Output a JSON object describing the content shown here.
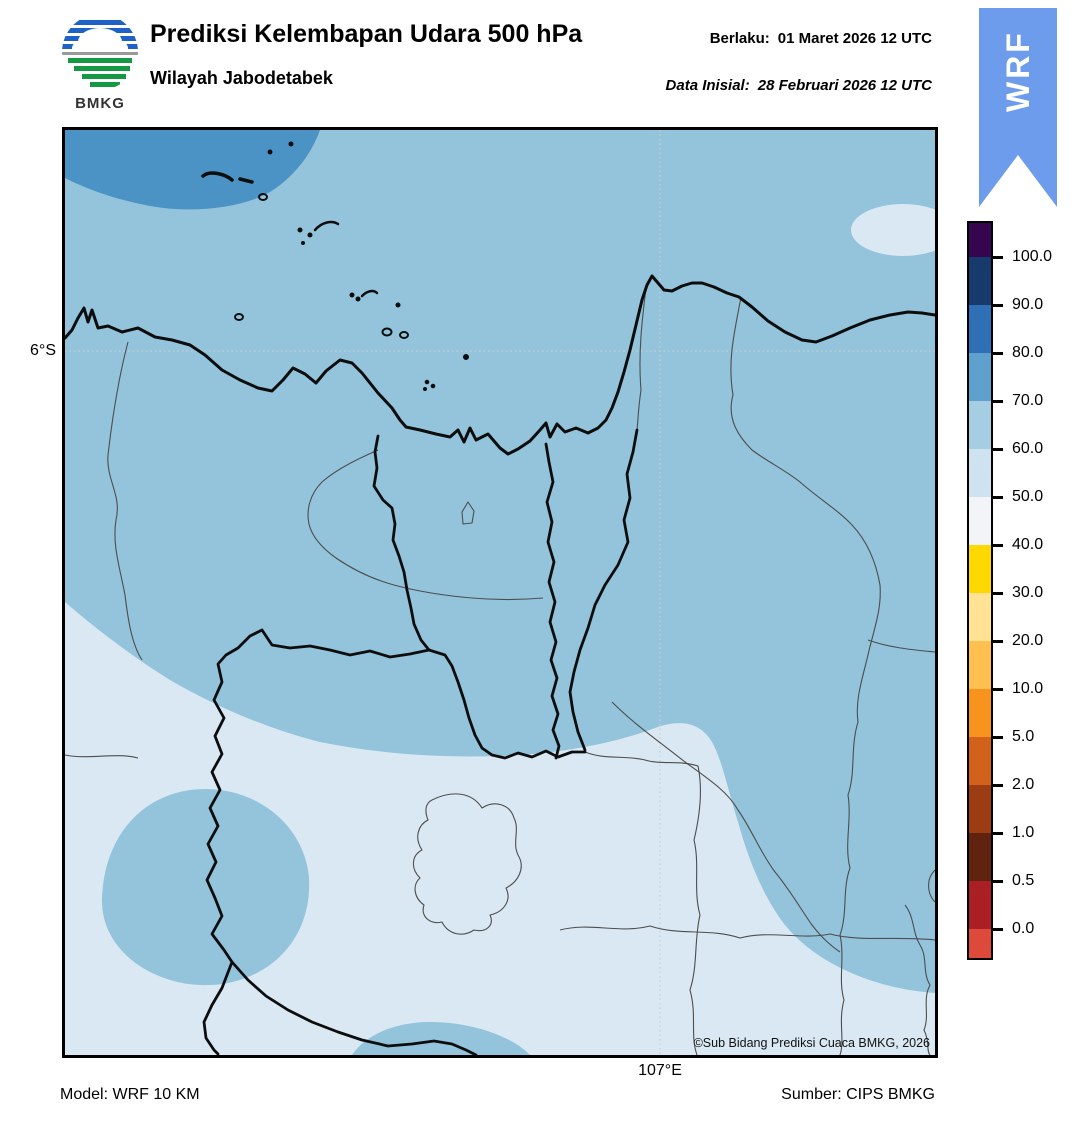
{
  "header": {
    "logo_text": "BMKG",
    "title": "Prediksi Kelembapan Udara 500 hPa",
    "subtitle": "Wilayah Jabodetabek",
    "valid": {
      "label": "Berlaku:",
      "value": "01 Maret 2026 12 UTC"
    },
    "initial": {
      "label": "Data Inisial:",
      "value": "28 Februari 2026 12 UTC"
    },
    "ribbon_text": "WRF"
  },
  "map": {
    "lat_label": "6°S",
    "lon_label": "107°E",
    "copyright": "©Sub Bidang Prediksi Cuaca BMKG, 2026"
  },
  "colorbar": {
    "labels": [
      "100.0",
      "90.0",
      "80.0",
      "70.0",
      "60.0",
      "50.0",
      "40.0",
      "30.0",
      "20.0",
      "10.0",
      "5.0",
      "2.0",
      "1.0",
      "0.5",
      "0.0"
    ],
    "colors": [
      "#35064F",
      "#173A6D",
      "#2E6FB6",
      "#5FA0CC",
      "#A5CEE3",
      "#CFE2F0",
      "#F2F4F8",
      "#FFD800",
      "#FFE294",
      "#FFC04F",
      "#F8941E",
      "#D2611B",
      "#9C3C12",
      "#5F2310",
      "#AA1F24",
      "#DD4A3C"
    ],
    "segment_heights": [
      34,
      48,
      48,
      48,
      48,
      48,
      48,
      48,
      48,
      48,
      48,
      48,
      48,
      48,
      48,
      29
    ]
  },
  "footer": {
    "model": "Model: WRF 10 KM",
    "source": "Sumber: CIPS BMKG"
  },
  "colors": {
    "map_base": "#93C4DB",
    "map_high": "#4B93C5",
    "map_low": "#D9E8F2",
    "ribbon": "#6D9CEC",
    "coast": "#0d0d0d",
    "admin_thin": "#4d4d4d",
    "gridline": "#c9cdd0"
  }
}
